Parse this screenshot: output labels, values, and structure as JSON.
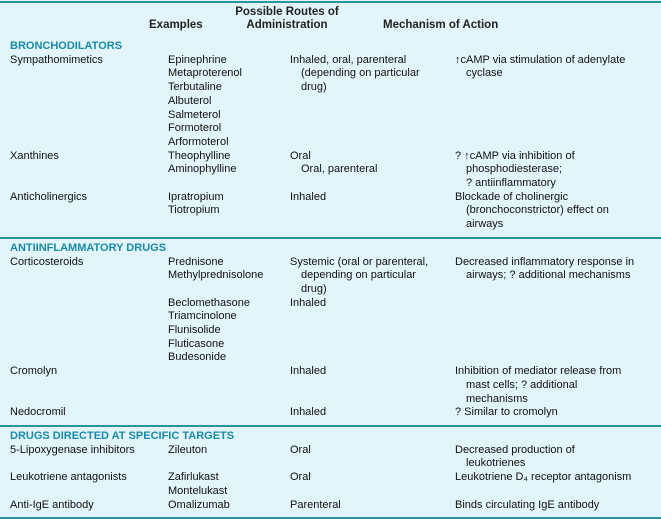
{
  "header": {
    "examples": "Examples",
    "routes_line1": "Possible Routes of",
    "routes_line2": "Administration",
    "mechanism": "Mechanism of Action"
  },
  "colors": {
    "accent": "#1a8aa8",
    "rule": "#2a93a6",
    "background": "#e1f5fb"
  },
  "sections": [
    {
      "title": "BRONCHODILATORS",
      "rows": [
        {
          "class": [
            "Sympathomimetics"
          ],
          "examples": [
            "Epinephrine",
            "Metaproterenol",
            "Terbutaline",
            "Albuterol",
            "Salmeterol",
            "Formoterol",
            "Arformoterol"
          ],
          "routes": [
            "Inhaled, oral, parenteral",
            "(depending on particular",
            "drug)"
          ],
          "mechanism": [
            "↑cAMP via stimulation of adenylate",
            "cyclase"
          ]
        },
        {
          "class": [
            "Xanthines"
          ],
          "examples": [
            "Theophylline",
            "Aminophylline"
          ],
          "routes": [
            "Oral",
            "Oral, parenteral"
          ],
          "mechanism": [
            "? ↑cAMP via inhibition of",
            "phosphodiesterase;",
            "? antiinflammatory"
          ]
        },
        {
          "class": [
            "Anticholinergics"
          ],
          "examples": [
            "Ipratropium",
            "Tiotropium"
          ],
          "routes": [
            "Inhaled"
          ],
          "mechanism": [
            "Blockade of cholinergic",
            "(bronchoconstrictor) effect on",
            "airways"
          ]
        }
      ]
    },
    {
      "title": "ANTIINFLAMMATORY DRUGS",
      "rows": [
        {
          "class": [
            "Corticosteroids"
          ],
          "examples": [
            "Prednisone",
            "Methylprednisolone"
          ],
          "routes": [
            "Systemic (oral or parenteral,",
            "depending on particular",
            "drug)"
          ],
          "mechanism": [
            "Decreased inflammatory response in",
            "airways; ? additional mechanisms"
          ]
        },
        {
          "class": [],
          "examples": [
            "Beclomethasone",
            "Triamcinolone",
            "Flunisolide",
            "Fluticasone",
            "Budesonide"
          ],
          "routes": [
            "Inhaled"
          ],
          "mechanism": []
        },
        {
          "class": [
            "Cromolyn"
          ],
          "examples": [],
          "routes": [
            "Inhaled"
          ],
          "mechanism": [
            "Inhibition of mediator release from",
            "mast cells; ? additional",
            "mechanisms"
          ]
        },
        {
          "class": [
            "Nedocromil"
          ],
          "examples": [],
          "routes": [
            "Inhaled"
          ],
          "mechanism": [
            "? Similar to cromolyn"
          ]
        }
      ]
    },
    {
      "title": "DRUGS DIRECTED AT SPECIFIC TARGETS",
      "rows": [
        {
          "class": [
            "5-Lipoxygenase inhibitors"
          ],
          "examples": [
            "Zileuton"
          ],
          "routes": [
            "Oral"
          ],
          "mechanism": [
            "Decreased production of",
            "leukotrienes"
          ]
        },
        {
          "class": [
            "Leukotriene antagonists"
          ],
          "examples": [
            "Zafirlukast",
            "Montelukast"
          ],
          "routes": [
            "Oral"
          ],
          "mechanism": [
            "Leukotriene D₄ receptor antagonism"
          ]
        },
        {
          "class": [
            "Anti-IgE antibody"
          ],
          "examples": [
            "Omalizumab"
          ],
          "routes": [
            "Parenteral"
          ],
          "mechanism": [
            "Binds circulating IgE antibody"
          ]
        }
      ]
    }
  ]
}
